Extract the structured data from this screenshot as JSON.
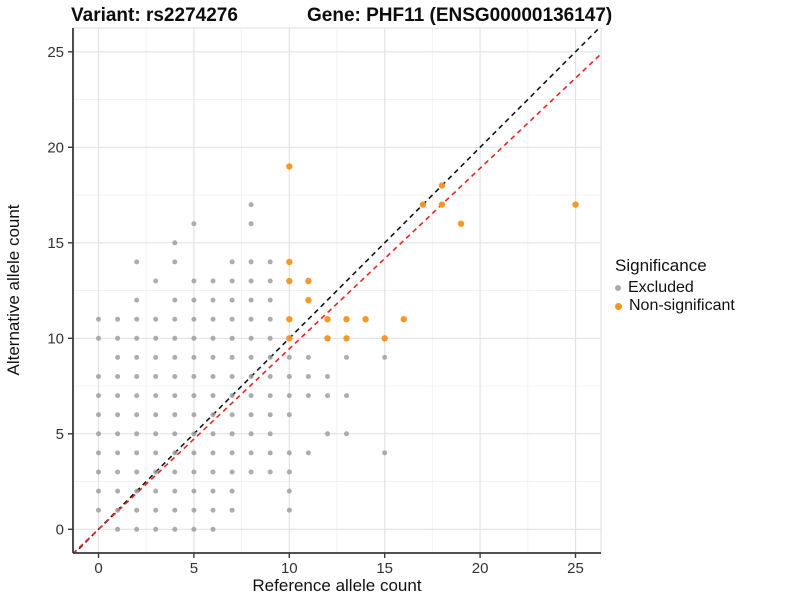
{
  "chart_data": {
    "type": "scatter",
    "titles": {
      "left": "Variant: rs2274276",
      "right": "Gene: PHF11 (ENSG00000136147)"
    },
    "xlabel": "Reference allele count",
    "ylabel": "Alternative allele count",
    "xticks": [
      "0",
      "5",
      "10",
      "15",
      "20",
      "25"
    ],
    "yticks": [
      "0",
      "5",
      "10",
      "15",
      "20",
      "25"
    ],
    "xtick_values": [
      0,
      5,
      10,
      15,
      20,
      25
    ],
    "ytick_values": [
      0,
      5,
      10,
      15,
      20,
      25
    ],
    "xlim": [
      -1.35,
      26.35
    ],
    "ylim": [
      -1.3,
      26.25
    ],
    "grid": {
      "major": [
        0,
        5,
        10,
        15,
        20,
        25
      ],
      "minor": [
        2.5,
        7.5,
        12.5,
        17.5,
        22.5
      ]
    },
    "colors": {
      "excluded": "#999999",
      "nonsignificant": "#F7941E",
      "identity_line": "#141414",
      "fitted_line": "#E8251F",
      "grid_major": "#E3E3E3",
      "grid_minor": "#F1F1F1",
      "panel_border": "#DCDCDC",
      "axis": "#3A3A3A",
      "tick_text": "#333333",
      "text": "#111111"
    },
    "legend": {
      "title": "Significance",
      "position": "right",
      "entries": [
        {
          "label": "Excluded",
          "color": "#A9A9A9"
        },
        {
          "label": "Non-significant",
          "color": "#F7941E"
        }
      ]
    },
    "reference_lines": [
      {
        "name": "identity",
        "slope": 1.0,
        "intercept": 0,
        "style": "dashed",
        "color": "#141414"
      },
      {
        "name": "fitted-ratio",
        "slope": 0.945,
        "intercept": 0,
        "style": "dashed",
        "color": "#E8251F"
      }
    ],
    "series": [
      {
        "name": "Excluded",
        "color": "#999999",
        "points": [
          [
            1,
            0
          ],
          [
            2,
            0
          ],
          [
            3,
            0
          ],
          [
            4,
            0
          ],
          [
            5,
            0
          ],
          [
            6,
            0
          ],
          [
            0,
            1
          ],
          [
            1,
            1
          ],
          [
            2,
            1
          ],
          [
            3,
            1
          ],
          [
            4,
            1
          ],
          [
            5,
            1
          ],
          [
            6,
            1
          ],
          [
            7,
            1
          ],
          [
            10,
            1
          ],
          [
            0,
            2
          ],
          [
            1,
            2
          ],
          [
            2,
            2
          ],
          [
            3,
            2
          ],
          [
            4,
            2
          ],
          [
            5,
            2
          ],
          [
            6,
            2
          ],
          [
            7,
            2
          ],
          [
            10,
            2
          ],
          [
            0,
            3
          ],
          [
            1,
            3
          ],
          [
            2,
            3
          ],
          [
            3,
            3
          ],
          [
            4,
            3
          ],
          [
            5,
            3
          ],
          [
            6,
            3
          ],
          [
            7,
            3
          ],
          [
            8,
            3
          ],
          [
            9,
            3
          ],
          [
            10,
            3
          ],
          [
            0,
            4
          ],
          [
            1,
            4
          ],
          [
            2,
            4
          ],
          [
            3,
            4
          ],
          [
            4,
            4
          ],
          [
            5,
            4
          ],
          [
            6,
            4
          ],
          [
            7,
            4
          ],
          [
            8,
            4
          ],
          [
            9,
            4
          ],
          [
            10,
            4
          ],
          [
            11,
            4
          ],
          [
            15,
            4
          ],
          [
            0,
            5
          ],
          [
            1,
            5
          ],
          [
            2,
            5
          ],
          [
            3,
            5
          ],
          [
            4,
            5
          ],
          [
            5,
            5
          ],
          [
            6,
            5
          ],
          [
            7,
            5
          ],
          [
            8,
            5
          ],
          [
            9,
            5
          ],
          [
            12,
            5
          ],
          [
            13,
            5
          ],
          [
            0,
            6
          ],
          [
            1,
            6
          ],
          [
            2,
            6
          ],
          [
            3,
            6
          ],
          [
            4,
            6
          ],
          [
            5,
            6
          ],
          [
            6,
            6
          ],
          [
            7,
            6
          ],
          [
            8,
            6
          ],
          [
            9,
            6
          ],
          [
            10,
            6
          ],
          [
            0,
            7
          ],
          [
            1,
            7
          ],
          [
            2,
            7
          ],
          [
            3,
            7
          ],
          [
            4,
            7
          ],
          [
            5,
            7
          ],
          [
            6,
            7
          ],
          [
            7,
            7
          ],
          [
            8,
            7
          ],
          [
            9,
            7
          ],
          [
            10,
            7
          ],
          [
            11,
            7
          ],
          [
            12,
            7
          ],
          [
            13,
            7
          ],
          [
            0,
            8
          ],
          [
            1,
            8
          ],
          [
            2,
            8
          ],
          [
            3,
            8
          ],
          [
            4,
            8
          ],
          [
            5,
            8
          ],
          [
            6,
            8
          ],
          [
            7,
            8
          ],
          [
            8,
            8
          ],
          [
            9,
            8
          ],
          [
            10,
            8
          ],
          [
            11,
            8
          ],
          [
            12,
            8
          ],
          [
            1,
            9
          ],
          [
            2,
            9
          ],
          [
            3,
            9
          ],
          [
            4,
            9
          ],
          [
            5,
            9
          ],
          [
            6,
            9
          ],
          [
            7,
            9
          ],
          [
            8,
            9
          ],
          [
            9,
            9
          ],
          [
            10,
            9
          ],
          [
            11,
            9
          ],
          [
            13,
            9
          ],
          [
            15,
            9
          ],
          [
            0,
            10
          ],
          [
            1,
            10
          ],
          [
            2,
            10
          ],
          [
            3,
            10
          ],
          [
            4,
            10
          ],
          [
            5,
            10
          ],
          [
            6,
            10
          ],
          [
            7,
            10
          ],
          [
            8,
            10
          ],
          [
            9,
            10
          ],
          [
            0,
            11
          ],
          [
            1,
            11
          ],
          [
            2,
            11
          ],
          [
            3,
            11
          ],
          [
            4,
            11
          ],
          [
            5,
            11
          ],
          [
            6,
            11
          ],
          [
            7,
            11
          ],
          [
            8,
            11
          ],
          [
            9,
            11
          ],
          [
            2,
            12
          ],
          [
            4,
            12
          ],
          [
            5,
            12
          ],
          [
            6,
            12
          ],
          [
            7,
            12
          ],
          [
            8,
            12
          ],
          [
            9,
            12
          ],
          [
            3,
            13
          ],
          [
            5,
            13
          ],
          [
            6,
            13
          ],
          [
            7,
            13
          ],
          [
            8,
            13
          ],
          [
            9,
            13
          ],
          [
            2,
            14
          ],
          [
            4,
            14
          ],
          [
            7,
            14
          ],
          [
            8,
            14
          ],
          [
            9,
            14
          ],
          [
            4,
            15
          ],
          [
            5,
            16
          ],
          [
            8,
            16
          ],
          [
            8,
            17
          ]
        ]
      },
      {
        "name": "Non-significant",
        "color": "#F7941E",
        "points": [
          [
            10,
            10
          ],
          [
            12,
            10
          ],
          [
            13,
            10
          ],
          [
            15,
            10
          ],
          [
            10,
            11
          ],
          [
            12,
            11
          ],
          [
            13,
            11
          ],
          [
            14,
            11
          ],
          [
            16,
            11
          ],
          [
            11,
            12
          ],
          [
            10,
            13
          ],
          [
            11,
            13
          ],
          [
            10,
            14
          ],
          [
            19,
            16
          ],
          [
            17,
            17
          ],
          [
            18,
            17
          ],
          [
            25,
            17
          ],
          [
            18,
            18
          ],
          [
            10,
            19
          ]
        ]
      }
    ]
  }
}
